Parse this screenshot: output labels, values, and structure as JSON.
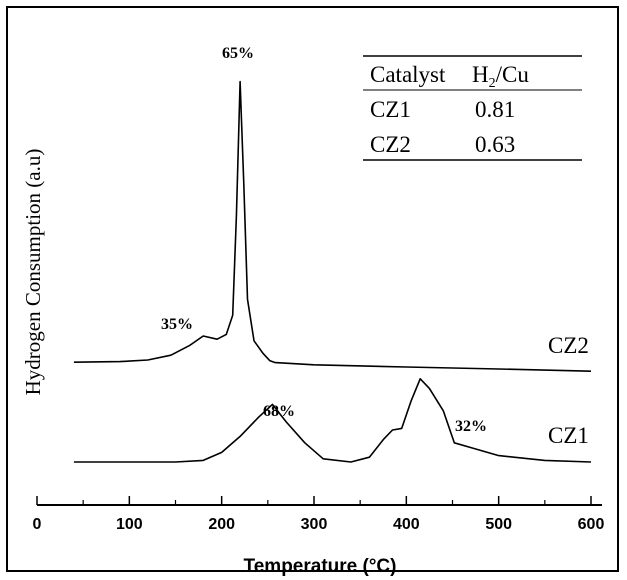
{
  "chart_data": {
    "type": "line",
    "title": "",
    "xlabel": "Temperature (°C)",
    "ylabel": "Hydrogen Consumption (a.u)",
    "xlim": [
      0,
      600
    ],
    "x_ticks": [
      "0",
      "100",
      "200",
      "300",
      "400",
      "500",
      "600"
    ],
    "grid": false,
    "series": [
      {
        "name": "CZ2",
        "x": [
          40,
          90,
          120,
          145,
          165,
          180,
          195,
          205,
          212,
          216,
          220,
          224,
          228,
          235,
          245,
          252,
          258,
          300,
          400,
          500,
          600
        ],
        "y": [
          0.93,
          0.95,
          1.0,
          1.15,
          1.45,
          1.75,
          1.65,
          1.8,
          2.4,
          5.5,
          9.7,
          6.5,
          2.9,
          1.6,
          1.2,
          0.98,
          0.92,
          0.85,
          0.78,
          0.72,
          0.65
        ],
        "peak_annotations": [
          {
            "label": "35%",
            "x": 180
          },
          {
            "label": "65%",
            "x": 220
          }
        ]
      },
      {
        "name": "CZ1",
        "x": [
          40,
          100,
          150,
          180,
          200,
          220,
          240,
          255,
          270,
          290,
          310,
          340,
          360,
          375,
          385,
          395,
          405,
          415,
          425,
          440,
          452,
          470,
          500,
          550,
          600
        ],
        "y": [
          0.0,
          0.0,
          0.0,
          0.05,
          0.3,
          0.8,
          1.4,
          1.8,
          1.25,
          0.6,
          0.1,
          0.0,
          0.15,
          0.7,
          1.0,
          1.05,
          1.9,
          2.6,
          2.3,
          1.6,
          0.6,
          0.45,
          0.2,
          0.05,
          0.0
        ],
        "peak_annotations": [
          {
            "label": "68%",
            "x": 255
          },
          {
            "label": "32%",
            "x": 420
          }
        ]
      }
    ],
    "inset_table": {
      "headers": [
        "Catalyst",
        "H",
        "2",
        "/Cu"
      ],
      "rows": [
        [
          "CZ1",
          "0.81"
        ],
        [
          "CZ2",
          "0.63"
        ]
      ]
    },
    "colors": {
      "line": "#000000",
      "background": "#ffffff"
    }
  }
}
